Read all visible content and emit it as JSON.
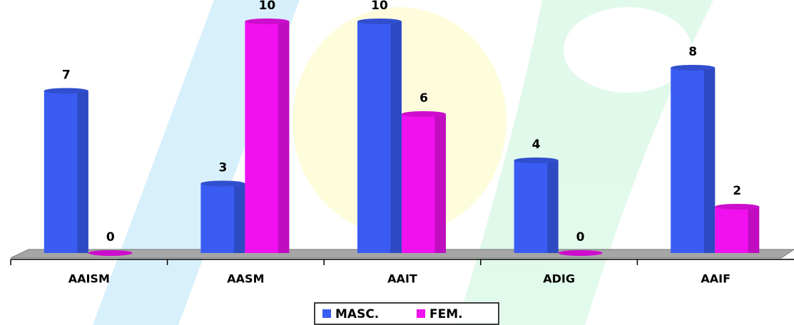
{
  "chart_data": {
    "type": "bar",
    "categories": [
      "AAISM",
      "AASM",
      "AAIT",
      "ADIG",
      "AAIF"
    ],
    "series": [
      {
        "name": "MASC.",
        "color": "#3a5cf2",
        "values": [
          7,
          3,
          10,
          4,
          8
        ]
      },
      {
        "name": "FEM.",
        "color": "#f010f0",
        "values": [
          0,
          10,
          6,
          0,
          2
        ]
      }
    ],
    "legend": "bottom"
  }
}
